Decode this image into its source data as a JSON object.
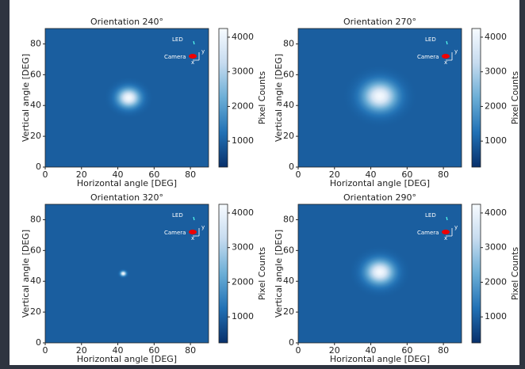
{
  "chart_data": [
    {
      "type": "heatmap",
      "title": "Orientation 240°",
      "xlabel": "Horizontal angle [DEG]",
      "ylabel": "Vertical angle [DEG]",
      "xlim": [
        0,
        90
      ],
      "ylim": [
        0,
        90
      ],
      "xticks": [
        0,
        20,
        40,
        60,
        80
      ],
      "yticks": [
        0,
        20,
        40,
        60,
        80
      ],
      "clim": [
        250,
        4250
      ],
      "cticks": [
        1000,
        2000,
        3000,
        4000
      ],
      "colorbar_label": "Pixel Counts",
      "background": 950,
      "spot": {
        "x": 46,
        "y": 45,
        "sigma": 4,
        "peak": 4200
      },
      "annotations": [
        "LED",
        "Camera",
        "x",
        "y"
      ]
    },
    {
      "type": "heatmap",
      "title": "Orientation 270°",
      "xlabel": "Horizontal angle [DEG]",
      "ylabel": "Vertical angle [DEG]",
      "xlim": [
        0,
        90
      ],
      "ylim": [
        0,
        90
      ],
      "xticks": [
        0,
        20,
        40,
        60,
        80
      ],
      "yticks": [
        0,
        20,
        40,
        60,
        80
      ],
      "clim": [
        250,
        4250
      ],
      "cticks": [
        1000,
        2000,
        3000,
        4000
      ],
      "colorbar_label": "Pixel Counts",
      "background": 950,
      "spot": {
        "x": 45,
        "y": 46,
        "sigma": 6,
        "peak": 4200
      },
      "annotations": [
        "LED",
        "Camera",
        "x",
        "y"
      ]
    },
    {
      "type": "heatmap",
      "title": "Orientation 320°",
      "xlabel": "Horizontal angle [DEG]",
      "ylabel": "Vertical angle [DEG]",
      "xlim": [
        0,
        90
      ],
      "ylim": [
        0,
        90
      ],
      "xticks": [
        0,
        20,
        40,
        60,
        80
      ],
      "yticks": [
        0,
        20,
        40,
        60,
        80
      ],
      "clim": [
        250,
        4250
      ],
      "cticks": [
        1000,
        2000,
        3000,
        4000
      ],
      "colorbar_label": "Pixel Counts",
      "background": 950,
      "spot": {
        "x": 43,
        "y": 45,
        "sigma": 1,
        "peak": 4200
      },
      "annotations": [
        "LED",
        "Camera",
        "x",
        "y"
      ]
    },
    {
      "type": "heatmap",
      "title": "Orientation 290°",
      "xlabel": "Horizontal angle [DEG]",
      "ylabel": "Vertical angle [DEG]",
      "xlim": [
        0,
        90
      ],
      "ylim": [
        0,
        90
      ],
      "xticks": [
        0,
        20,
        40,
        60,
        80
      ],
      "yticks": [
        0,
        20,
        40,
        60,
        80
      ],
      "clim": [
        250,
        4250
      ],
      "cticks": [
        1000,
        2000,
        3000,
        4000
      ],
      "colorbar_label": "Pixel Counts",
      "background": 950,
      "spot": {
        "x": 45,
        "y": 46,
        "sigma": 5,
        "peak": 4200
      },
      "annotations": [
        "LED",
        "Camera",
        "x",
        "y"
      ]
    }
  ]
}
